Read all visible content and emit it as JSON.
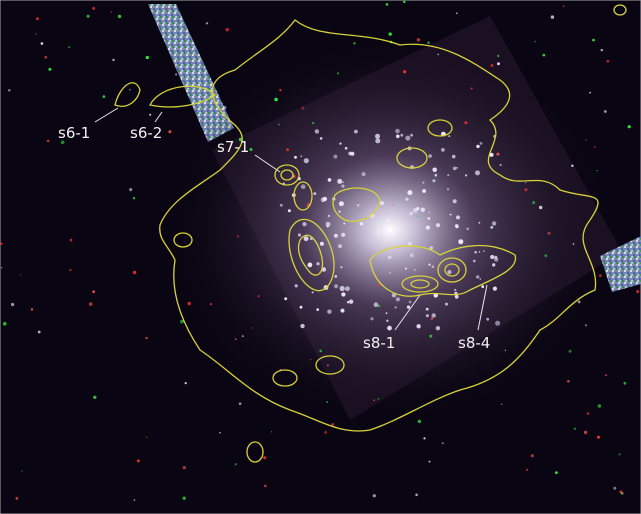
{
  "labels": [
    "s6-1",
    "s6-2",
    "s7-1",
    "s8-1",
    "s8-4"
  ]
}
